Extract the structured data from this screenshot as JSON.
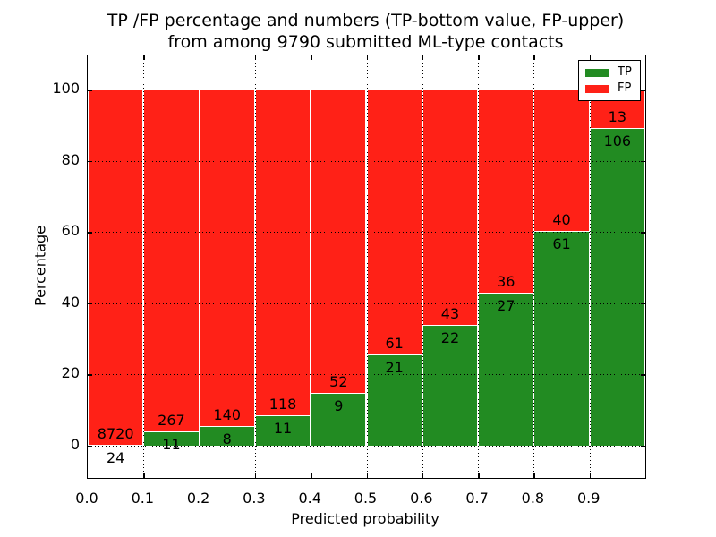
{
  "title": {
    "line1": "TP /FP percentage and numbers (TP-bottom value, FP-upper)",
    "line2": "from among 9790 submitted ML-type contacts"
  },
  "chart_data": {
    "type": "bar",
    "subtype": "stacked-percentage",
    "title": "TP /FP percentage and numbers (TP-bottom value, FP-upper)\nfrom among 9790 submitted ML-type contacts",
    "xlabel": "Predicted probability",
    "ylabel": "Percentage",
    "total_contacts": 9790,
    "bin_edges": [
      0.0,
      0.1,
      0.2,
      0.3,
      0.4,
      0.5,
      0.6,
      0.7,
      0.8,
      0.9,
      1.0
    ],
    "bin_ranges": [
      "0.0-0.1",
      "0.1-0.2",
      "0.2-0.3",
      "0.3-0.4",
      "0.4-0.5",
      "0.5-0.6",
      "0.6-0.7",
      "0.7-0.8",
      "0.8-0.9",
      "0.9-1.0"
    ],
    "series": [
      {
        "name": "TP",
        "color": "#228b22",
        "counts": [
          24,
          11,
          8,
          11,
          9,
          21,
          22,
          27,
          61,
          106
        ]
      },
      {
        "name": "FP",
        "color": "#ff2117",
        "counts": [
          8720,
          267,
          140,
          118,
          52,
          61,
          43,
          36,
          40,
          13
        ]
      }
    ],
    "tp_percent": [
      0.27,
      3.96,
      5.41,
      8.53,
      14.75,
      25.61,
      33.85,
      42.86,
      60.4,
      89.08
    ],
    "xticks": [
      "0.0",
      "0.1",
      "0.2",
      "0.3",
      "0.4",
      "0.5",
      "0.6",
      "0.7",
      "0.8",
      "0.9"
    ],
    "yticks": [
      0,
      20,
      40,
      60,
      80,
      100
    ],
    "xlim": [
      0.0,
      1.0
    ],
    "ylim": [
      -9,
      109
    ],
    "grid": true,
    "grid_style": "dotted",
    "legend": {
      "position": "upper right",
      "entries": [
        {
          "label": "TP",
          "color": "#228b22"
        },
        {
          "label": "FP",
          "color": "#ff2117"
        }
      ]
    }
  }
}
